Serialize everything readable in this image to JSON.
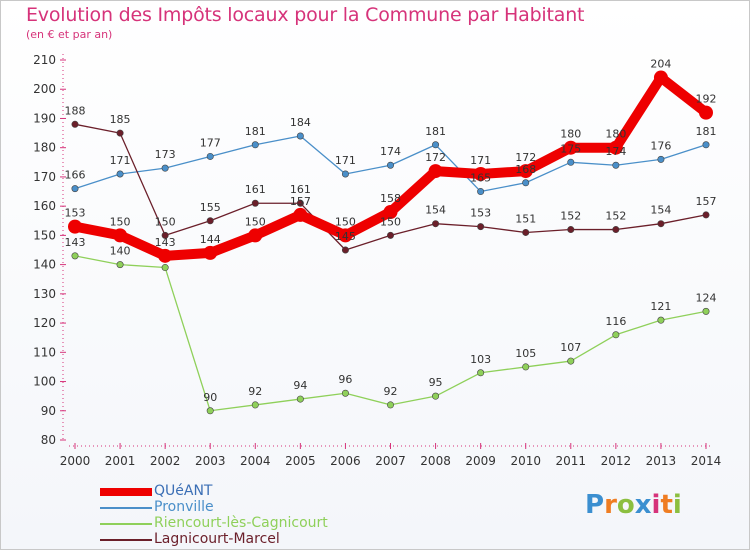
{
  "header": {
    "title": "Evolution des Impôts locaux pour la Commune par Habitant",
    "subtitle": "(en € et par an)"
  },
  "logo": {
    "letters": [
      "P",
      "r",
      "o",
      "x",
      "i",
      "t",
      "i"
    ]
  },
  "chart_data": {
    "type": "line",
    "title": "Evolution des Impôts locaux pour la Commune par Habitant",
    "subtitle": "(en € et par an)",
    "xlabel": "",
    "ylabel": "",
    "x": [
      2000,
      2001,
      2002,
      2003,
      2004,
      2005,
      2006,
      2007,
      2008,
      2009,
      2010,
      2011,
      2012,
      2013,
      2014
    ],
    "ylim": [
      80,
      210
    ],
    "yticks": [
      80,
      90,
      100,
      110,
      120,
      130,
      140,
      150,
      160,
      170,
      180,
      190,
      200,
      210
    ],
    "grid": false,
    "legend_position": "bottom-left",
    "series": [
      {
        "name": "QUéANT",
        "color": "#ee0000",
        "emphasis": true,
        "values": [
          153,
          150,
          143,
          144,
          150,
          157,
          150,
          158,
          172,
          171,
          172,
          180,
          180,
          204,
          192
        ]
      },
      {
        "name": "Pronville",
        "color": "#4a8fc9",
        "emphasis": false,
        "values": [
          166,
          171,
          173,
          177,
          181,
          184,
          171,
          174,
          181,
          165,
          168,
          175,
          174,
          176,
          181
        ]
      },
      {
        "name": "Riencourt-lès-Cagnicourt",
        "color": "#8fd05a",
        "emphasis": false,
        "values": [
          143,
          140,
          139,
          90,
          92,
          94,
          96,
          92,
          95,
          103,
          105,
          107,
          116,
          121,
          124
        ]
      },
      {
        "name": "Lagnicourt-Marcel",
        "color": "#6b1f2a",
        "emphasis": false,
        "values": [
          188,
          185,
          150,
          155,
          161,
          161,
          145,
          150,
          154,
          153,
          151,
          152,
          152,
          154,
          157
        ]
      }
    ],
    "data_labels": [
      [
        "153",
        "150",
        "143",
        "144",
        "150",
        "157",
        "150",
        "158",
        "172",
        "171",
        "172",
        "180",
        "180",
        "204",
        "192"
      ],
      [
        "166",
        "171",
        "173",
        "177",
        "181",
        "184",
        "171",
        "174",
        "181",
        "165",
        "168",
        "175",
        "174",
        "176",
        "181"
      ],
      [
        "143",
        "140",
        "",
        "90",
        "92",
        "94",
        "96",
        "92",
        "95",
        "103",
        "105",
        "107",
        "116",
        "121",
        "124"
      ],
      [
        "188",
        "185",
        "150",
        "155",
        "161",
        "161",
        "145",
        "150",
        "154",
        "153",
        "151",
        "152",
        "152",
        "154",
        "157"
      ]
    ]
  }
}
